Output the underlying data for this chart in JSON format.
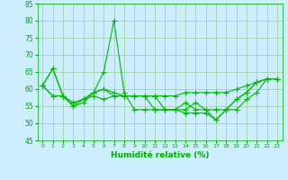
{
  "x": [
    0,
    1,
    2,
    3,
    4,
    5,
    6,
    7,
    8,
    9,
    10,
    11,
    12,
    13,
    14,
    15,
    16,
    17,
    18,
    19,
    20,
    21,
    22,
    23
  ],
  "series": [
    [
      61,
      66,
      58,
      55,
      56,
      59,
      65,
      80,
      59,
      54,
      54,
      54,
      54,
      54,
      54,
      56,
      54,
      51,
      54,
      57,
      59,
      62,
      63,
      63
    ],
    [
      61,
      58,
      58,
      55,
      57,
      58,
      57,
      58,
      58,
      58,
      58,
      58,
      58,
      58,
      59,
      59,
      59,
      59,
      59,
      60,
      61,
      62,
      63,
      63
    ],
    [
      61,
      58,
      58,
      56,
      57,
      59,
      60,
      58,
      58,
      58,
      58,
      54,
      54,
      54,
      53,
      53,
      53,
      51,
      54,
      54,
      57,
      59,
      63,
      63
    ],
    [
      61,
      66,
      58,
      56,
      57,
      59,
      60,
      59,
      58,
      58,
      58,
      58,
      54,
      54,
      56,
      54,
      54,
      54,
      54,
      57,
      59,
      62,
      63,
      63
    ]
  ],
  "line_color": "#00bb00",
  "marker": "+",
  "markersize": 4,
  "linewidth": 0.8,
  "xlim": [
    -0.5,
    23.5
  ],
  "ylim": [
    45,
    85
  ],
  "yticks": [
    45,
    50,
    55,
    60,
    65,
    70,
    75,
    80,
    85
  ],
  "xtick_labels": [
    "0",
    "1",
    "2",
    "3",
    "4",
    "5",
    "6",
    "7",
    "8",
    "9",
    "10",
    "11",
    "12",
    "13",
    "14",
    "15",
    "16",
    "17",
    "18",
    "19",
    "20",
    "21",
    "22",
    "23"
  ],
  "xlabel": "Humidité relative (%)",
  "xlabel_color": "#00aa00",
  "background_color": "#cceeff",
  "grid_color": "#99cc99",
  "tick_color": "#00aa00",
  "label_color": "#00aa00"
}
